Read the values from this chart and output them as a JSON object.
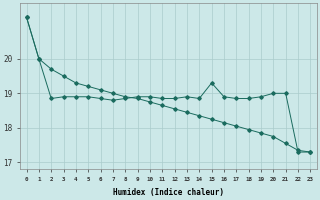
{
  "xlabel": "Humidex (Indice chaleur)",
  "bg_color": "#cce8e8",
  "line_color": "#1a6b5e",
  "grid_color": "#aacccc",
  "line1_x": [
    0,
    1,
    2,
    3,
    4,
    5,
    6,
    7,
    8,
    9,
    10,
    11,
    12,
    13,
    14,
    15,
    16,
    17,
    18,
    19,
    20,
    21,
    22,
    23
  ],
  "line1_y": [
    21.2,
    20.0,
    18.85,
    18.9,
    18.9,
    18.9,
    18.85,
    18.8,
    18.85,
    18.9,
    18.9,
    18.85,
    18.85,
    18.9,
    18.85,
    19.3,
    18.9,
    18.85,
    18.85,
    18.9,
    19.0,
    19.0,
    17.3,
    17.3
  ],
  "line2_x": [
    0,
    1,
    2,
    3,
    4,
    5,
    6,
    7,
    8,
    9,
    10,
    11,
    12,
    13,
    14,
    15,
    16,
    17,
    18,
    19,
    20,
    21,
    22,
    23
  ],
  "line2_y": [
    21.2,
    20.0,
    19.7,
    19.5,
    19.3,
    19.2,
    19.1,
    19.0,
    18.9,
    18.85,
    18.75,
    18.65,
    18.55,
    18.45,
    18.35,
    18.25,
    18.15,
    18.05,
    17.95,
    17.85,
    17.75,
    17.55,
    17.35,
    17.3
  ],
  "ylim": [
    16.8,
    21.6
  ],
  "yticks": [
    17,
    18,
    19,
    20
  ],
  "xticks": [
    0,
    1,
    2,
    3,
    4,
    5,
    6,
    7,
    8,
    9,
    10,
    11,
    12,
    13,
    14,
    15,
    16,
    17,
    18,
    19,
    20,
    21,
    22,
    23
  ]
}
